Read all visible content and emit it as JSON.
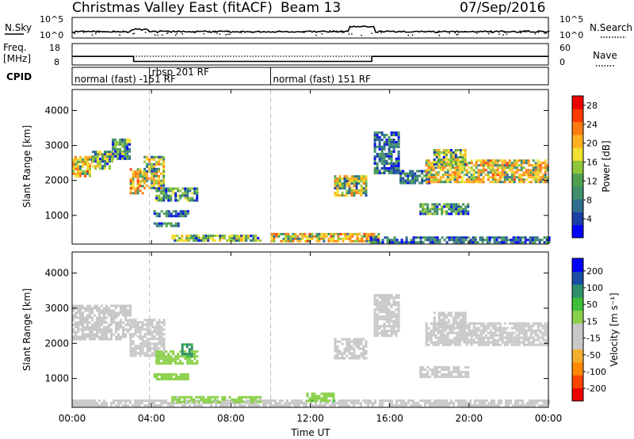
{
  "header": {
    "title": "Christmas Valley East (fitACF)",
    "beam": "Beam 13",
    "date": "07/Sep/2016"
  },
  "nsky_panel": {
    "left_label": "N.Sky",
    "right_label": "N.Search",
    "left_ticks": [
      "10^5",
      "10^0"
    ],
    "right_ticks": [
      "10^5",
      "10^0"
    ]
  },
  "freq_panel": {
    "left_label_1": "Freq.",
    "left_label_2": "[MHz]",
    "right_label": "Nave",
    "left_ticks": [
      "18",
      "8"
    ],
    "right_ticks": [
      "60",
      "0"
    ]
  },
  "cpid_panel": {
    "label": "CPID",
    "segments": [
      {
        "start": 0,
        "end": 3.9,
        "text": "normal (fast) -151 RF"
      },
      {
        "start": 3.9,
        "end": 10,
        "text": "rbsp 201 RF"
      },
      {
        "start": 10,
        "end": 24,
        "text": "normal (fast) 151 RF"
      }
    ]
  },
  "x_axis": {
    "label": "Time UT",
    "ticks": [
      "00:00",
      "04:00",
      "08:00",
      "12:00",
      "16:00",
      "20:00",
      "00:00"
    ]
  },
  "chart_data": [
    {
      "type": "heatmap",
      "title": "Power",
      "xlabel": "Time UT",
      "ylabel": "Slant Range [km]",
      "xlim": [
        0,
        24
      ],
      "ylim": [
        180,
        4600
      ],
      "y_ticks": [
        "1000",
        "2000",
        "3000",
        "4000"
      ],
      "colorbar": {
        "label": "Power [dB]",
        "ticks": [
          "4",
          "8",
          "12",
          "16",
          "20",
          "24",
          "28"
        ],
        "range": [
          0,
          30
        ],
        "colors": [
          "#0000ff",
          "#1a3fa5",
          "#2e6e8e",
          "#3f8f6a",
          "#4fa04f",
          "#8fc73a",
          "#f0e030",
          "#ffb020",
          "#ff7a10",
          "#ff3a00",
          "#ee0000"
        ]
      },
      "regions": [
        {
          "t0": 0.0,
          "t1": 1.0,
          "r0": 2100,
          "r1": 2700,
          "value": 20
        },
        {
          "t0": 1.0,
          "t1": 2.0,
          "r0": 2350,
          "r1": 2850,
          "value": 15
        },
        {
          "t0": 2.0,
          "t1": 2.9,
          "r0": 2600,
          "r1": 3200,
          "value": 12
        },
        {
          "t0": 2.9,
          "t1": 3.6,
          "r0": 1650,
          "r1": 2350,
          "value": 22
        },
        {
          "t0": 3.6,
          "t1": 4.6,
          "r0": 1800,
          "r1": 2700,
          "value": 18
        },
        {
          "t0": 4.2,
          "t1": 6.3,
          "r0": 1450,
          "r1": 1800,
          "value": 12
        },
        {
          "t0": 4.1,
          "t1": 5.8,
          "r0": 1000,
          "r1": 1150,
          "value": 8
        },
        {
          "t0": 4.1,
          "t1": 5.4,
          "r0": 700,
          "r1": 800,
          "value": 8
        },
        {
          "t0": 5.0,
          "t1": 9.5,
          "r0": 250,
          "r1": 450,
          "value": 16
        },
        {
          "t0": 10.0,
          "t1": 15.5,
          "r0": 250,
          "r1": 500,
          "value": 20
        },
        {
          "t0": 13.2,
          "t1": 14.8,
          "r0": 1600,
          "r1": 2150,
          "value": 18
        },
        {
          "t0": 15.2,
          "t1": 16.5,
          "r0": 2200,
          "r1": 3400,
          "value": 8
        },
        {
          "t0": 16.5,
          "t1": 18.0,
          "r0": 1900,
          "r1": 2300,
          "value": 8
        },
        {
          "t0": 17.8,
          "t1": 24.0,
          "r0": 1950,
          "r1": 2600,
          "value": 20
        },
        {
          "t0": 18.2,
          "t1": 19.8,
          "r0": 2450,
          "r1": 2900,
          "value": 16
        },
        {
          "t0": 17.5,
          "t1": 20.0,
          "r0": 1050,
          "r1": 1350,
          "value": 12
        },
        {
          "t0": 15.0,
          "t1": 24.0,
          "r0": 200,
          "r1": 400,
          "value": 8
        }
      ]
    },
    {
      "type": "heatmap",
      "title": "Velocity",
      "xlabel": "Time UT",
      "ylabel": "Slant Range [km]",
      "xlim": [
        0,
        24
      ],
      "ylim": [
        180,
        4600
      ],
      "y_ticks": [
        "1000",
        "2000",
        "3000",
        "4000"
      ],
      "colorbar": {
        "label": "Velocity [m s⁻¹]",
        "ticks": [
          "200",
          "100",
          "50",
          "15",
          "-15",
          "-50",
          "-100",
          "-200"
        ],
        "range": [
          -250,
          250
        ],
        "colors": [
          "#ee0000",
          "#ff4400",
          "#ff8800",
          "#f5b030",
          "#c8c8c8",
          "#c8c8c8",
          "#8ad048",
          "#3cc03c",
          "#2e8f6a",
          "#1a4fa5",
          "#0000ff"
        ]
      },
      "regions": [
        {
          "t0": 0.0,
          "t1": 2.9,
          "r0": 2100,
          "r1": 3100,
          "value": 0
        },
        {
          "t0": 2.9,
          "t1": 4.6,
          "r0": 1650,
          "r1": 2700,
          "value": 0
        },
        {
          "t0": 4.2,
          "t1": 6.3,
          "r0": 1450,
          "r1": 1800,
          "value": 40
        },
        {
          "t0": 4.1,
          "t1": 5.8,
          "r0": 1000,
          "r1": 1150,
          "value": 40
        },
        {
          "t0": 5.5,
          "t1": 6.0,
          "r0": 1650,
          "r1": 2000,
          "value": 120
        },
        {
          "t0": 0.0,
          "t1": 24.0,
          "r0": 220,
          "r1": 400,
          "value": -40
        },
        {
          "t0": 5.0,
          "t1": 9.5,
          "r0": 350,
          "r1": 500,
          "value": 30
        },
        {
          "t0": 11.8,
          "t1": 13.2,
          "r0": 350,
          "r1": 600,
          "value": 60
        },
        {
          "t0": 13.2,
          "t1": 14.8,
          "r0": 1600,
          "r1": 2150,
          "value": 0
        },
        {
          "t0": 15.2,
          "t1": 16.5,
          "r0": 2200,
          "r1": 3400,
          "value": 0
        },
        {
          "t0": 17.8,
          "t1": 24.0,
          "r0": 1950,
          "r1": 2600,
          "value": 0
        },
        {
          "t0": 18.2,
          "t1": 19.8,
          "r0": 2450,
          "r1": 2900,
          "value": 0
        },
        {
          "t0": 17.5,
          "t1": 20.0,
          "r0": 1050,
          "r1": 1350,
          "value": 0
        }
      ]
    }
  ]
}
